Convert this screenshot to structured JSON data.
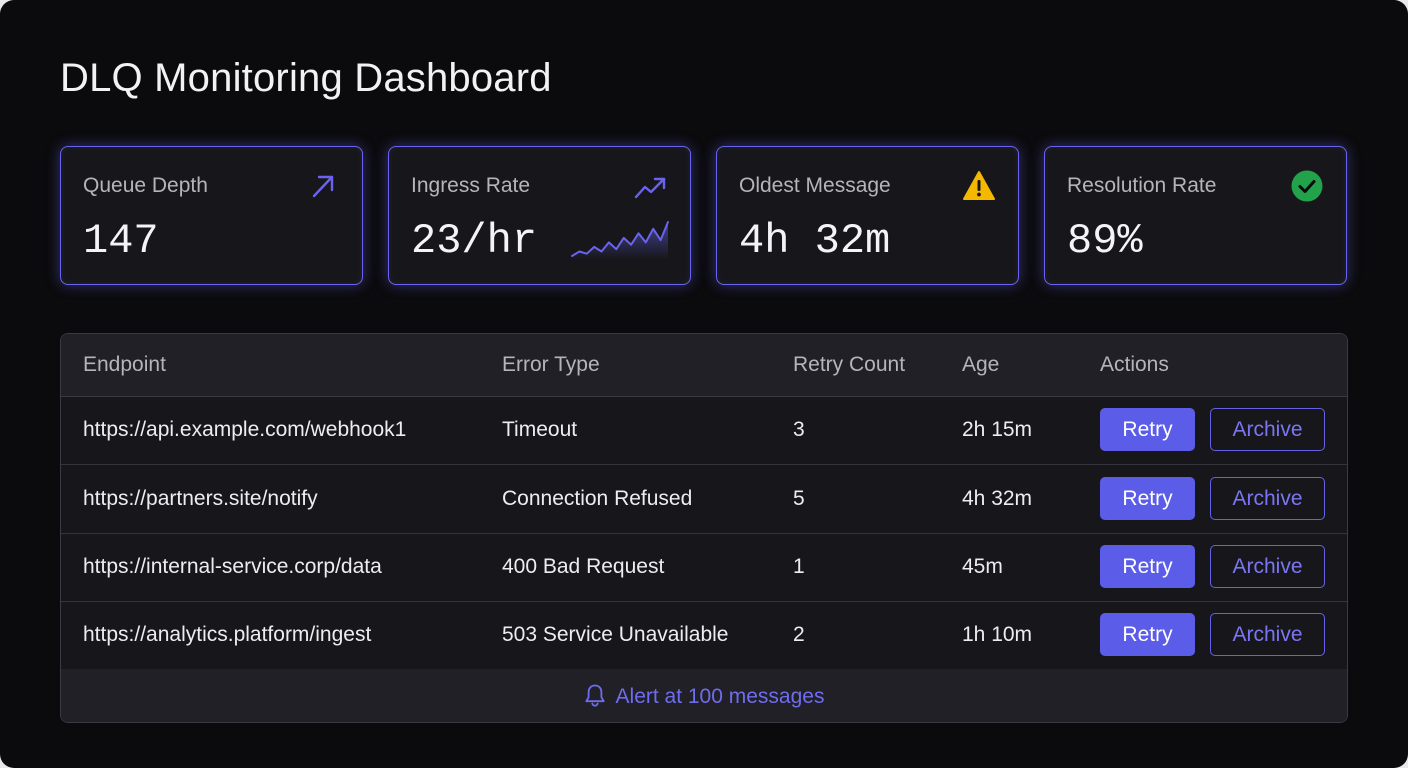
{
  "page": {
    "title": "DLQ Monitoring Dashboard"
  },
  "colors": {
    "background": "#0b0b0d",
    "accent": "#5b5ce8",
    "card_border": "#6a63f0",
    "warning": "#f5b800",
    "success": "#22a24a"
  },
  "metrics": [
    {
      "label": "Queue Depth",
      "value": "147",
      "icon": "trend-up-arrow-icon"
    },
    {
      "label": "Ingress Rate",
      "value": "23/hr",
      "icon": "trending-up-icon",
      "sparkline": [
        3,
        5,
        4,
        7,
        5,
        9,
        6,
        11,
        8,
        13,
        9,
        15,
        10,
        18
      ]
    },
    {
      "label": "Oldest Message",
      "value": "4h 32m",
      "icon": "warning-triangle-icon"
    },
    {
      "label": "Resolution Rate",
      "value": "89%",
      "icon": "check-circle-icon"
    }
  ],
  "table": {
    "headers": {
      "endpoint": "Endpoint",
      "error_type": "Error Type",
      "retry_count": "Retry Count",
      "age": "Age",
      "actions": "Actions"
    },
    "rows": [
      {
        "endpoint": "https://api.example.com/webhook1",
        "error_type": "Timeout",
        "retry_count": "3",
        "age": "2h 15m"
      },
      {
        "endpoint": "https://partners.site/notify",
        "error_type": "Connection Refused",
        "retry_count": "5",
        "age": "4h 32m"
      },
      {
        "endpoint": "https://internal-service.corp/data",
        "error_type": "400 Bad Request",
        "retry_count": "1",
        "age": "45m"
      },
      {
        "endpoint": "https://analytics.platform/ingest",
        "error_type": "503 Service Unavailable",
        "retry_count": "2",
        "age": "1h 10m"
      }
    ],
    "actions": {
      "retry_label": "Retry",
      "archive_label": "Archive"
    }
  },
  "footer": {
    "alert_text": "Alert at 100 messages",
    "icon": "bell-icon"
  }
}
